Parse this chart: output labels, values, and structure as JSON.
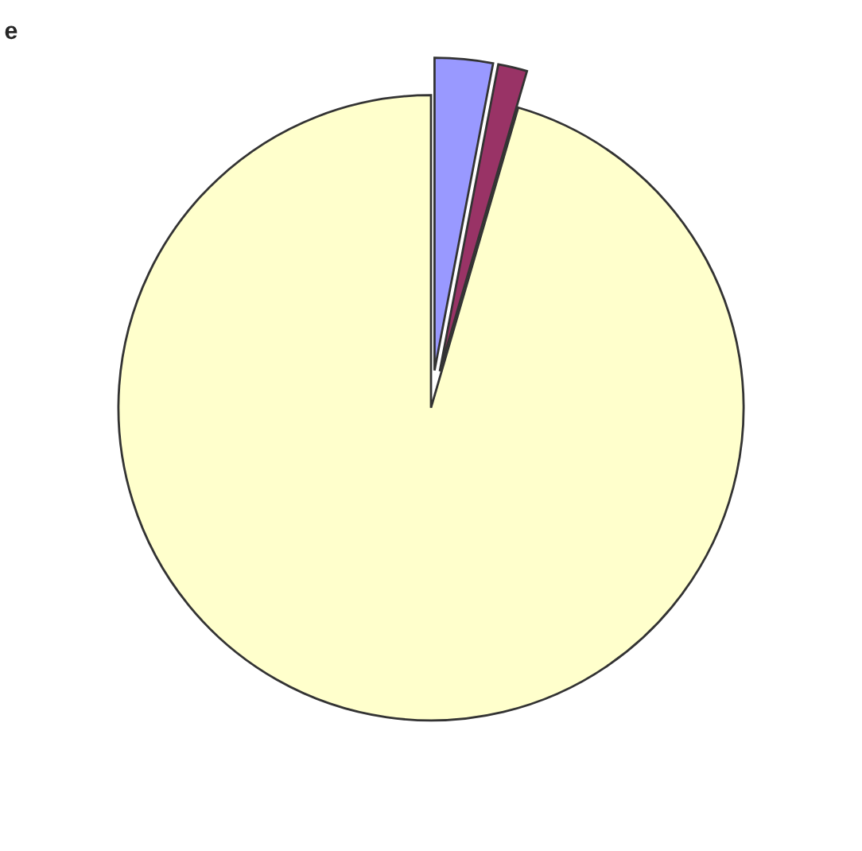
{
  "chart_data": {
    "type": "pie",
    "annotations": [
      "e"
    ],
    "categories": [
      null,
      null,
      null
    ],
    "values": [
      3,
      1.5,
      95.5
    ],
    "colors": [
      "#9999ff",
      "#993366",
      "#ffffcc"
    ],
    "legend": false
  }
}
